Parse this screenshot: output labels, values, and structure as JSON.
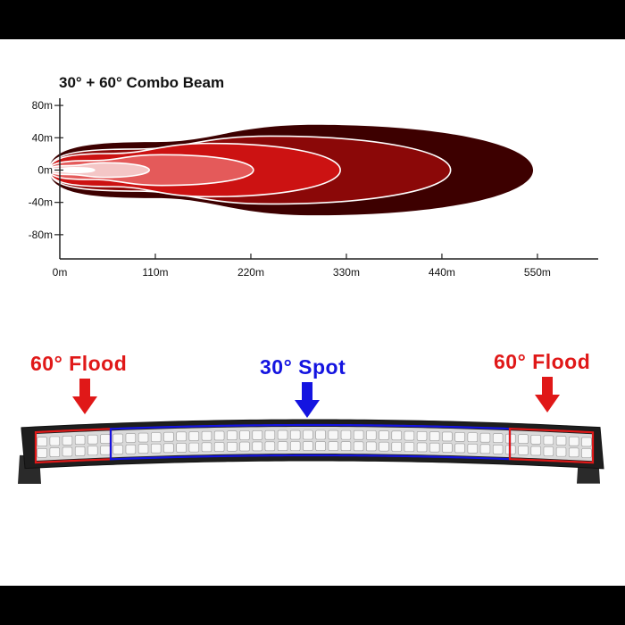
{
  "chart_data": {
    "type": "area",
    "title": "30° + 60° Combo Beam",
    "xlabel": "",
    "ylabel": "",
    "x_ticks": [
      "0m",
      "110m",
      "220m",
      "330m",
      "440m",
      "550m"
    ],
    "x_tick_values": [
      0,
      110,
      220,
      330,
      440,
      550
    ],
    "y_ticks": [
      "80m",
      "40m",
      "0m",
      "-40m",
      "-80m"
    ],
    "y_tick_values": [
      80,
      40,
      0,
      -40,
      -80
    ],
    "xlim": [
      0,
      620
    ],
    "ylim": [
      -110,
      100
    ],
    "grid": false,
    "series": [
      {
        "reach": 545,
        "half_width": 56,
        "color": "#3d0000"
      },
      {
        "reach": 450,
        "half_width": 42,
        "color": "#8b0808"
      },
      {
        "reach": 323,
        "half_width": 33,
        "color": "#cc1212"
      },
      {
        "reach": 223,
        "half_width": 19,
        "color": "#e45a5a"
      },
      {
        "reach": 103,
        "half_width": 9,
        "color": "#f4c6c6"
      },
      {
        "reach": 40,
        "half_width": 3,
        "color": "#ffffff"
      }
    ]
  },
  "product": {
    "flood_left_label": "60° Flood",
    "spot_label": "30° Spot",
    "flood_right_label": "60° Flood",
    "flood_color": "#e01818",
    "spot_color": "#1414e0",
    "led_columns": 44
  }
}
